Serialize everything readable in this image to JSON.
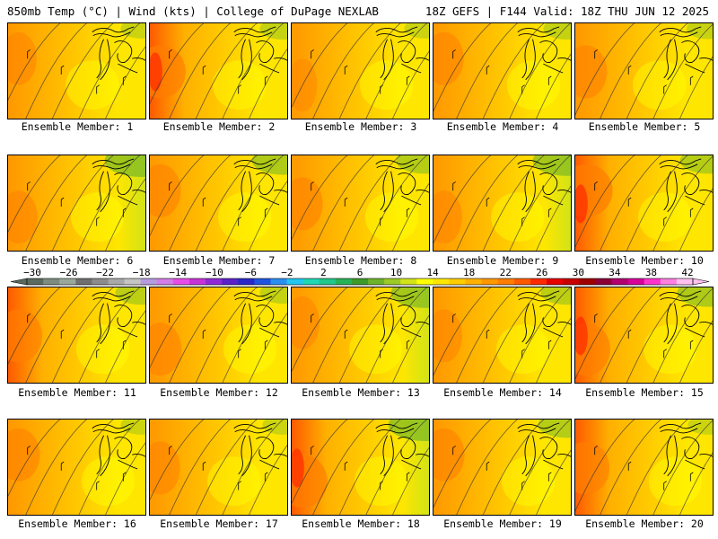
{
  "header": {
    "left": "850mb Temp (°C) | Wind (kts) | College of DuPage NEXLAB",
    "right": "18Z GEFS | F144 Valid: 18Z THU JUN 12 2025"
  },
  "members": [
    {
      "label": "Ensemble Member: 1",
      "red": 0.35,
      "green": 0.1
    },
    {
      "label": "Ensemble Member: 2",
      "red": 0.8,
      "green": 0.2
    },
    {
      "label": "Ensemble Member: 3",
      "red": 0.15,
      "green": 0.1
    },
    {
      "label": "Ensemble Member: 4",
      "red": 0.45,
      "green": 0.2
    },
    {
      "label": "Ensemble Member: 5",
      "red": 0.55,
      "green": 0.15
    },
    {
      "label": "Ensemble Member: 6",
      "red": 0.4,
      "green": 0.7
    },
    {
      "label": "Ensemble Member: 7",
      "red": 0.5,
      "green": 0.5
    },
    {
      "label": "Ensemble Member: 8",
      "red": 0.5,
      "green": 0.4
    },
    {
      "label": "Ensemble Member: 9",
      "red": 0.35,
      "green": 0.6
    },
    {
      "label": "Ensemble Member: 10",
      "red": 0.9,
      "green": 0.4
    },
    {
      "label": "Ensemble Member: 11",
      "red": 0.7,
      "green": 0.3
    },
    {
      "label": "Ensemble Member: 12",
      "red": 0.55,
      "green": 0.2
    },
    {
      "label": "Ensemble Member: 13",
      "red": 0.3,
      "green": 0.6
    },
    {
      "label": "Ensemble Member: 14",
      "red": 0.35,
      "green": 0.3
    },
    {
      "label": "Ensemble Member: 15",
      "red": 0.75,
      "green": 0.5
    },
    {
      "label": "Ensemble Member: 16",
      "red": 0.55,
      "green": 0.1
    },
    {
      "label": "Ensemble Member: 17",
      "red": 0.45,
      "green": 0.1
    },
    {
      "label": "Ensemble Member: 18",
      "red": 0.8,
      "green": 0.7
    },
    {
      "label": "Ensemble Member: 19",
      "red": 0.5,
      "green": 0.4
    },
    {
      "label": "Ensemble Member: 20",
      "red": 0.7,
      "green": 0.1
    }
  ],
  "colorbar": {
    "labels": [
      "-30",
      "-26",
      "-22",
      "-18",
      "-14",
      "-10",
      "-6",
      "-2",
      "2",
      "6",
      "10",
      "14",
      "18",
      "22",
      "26",
      "30",
      "34",
      "38",
      "42"
    ],
    "colors": [
      "#5b6a5e",
      "#7c8c7f",
      "#9aa89c",
      "#707070",
      "#8c8c8c",
      "#a8a8a8",
      "#c4c4c4",
      "#b79be0",
      "#d27de8",
      "#e84ce8",
      "#c833d8",
      "#8e2bd6",
      "#5b21c8",
      "#2a28c8",
      "#1f55e0",
      "#2b8fef",
      "#22c6ef",
      "#1fd7b5",
      "#22c78a",
      "#27b257",
      "#3c9b2a",
      "#6db32a",
      "#9dca26",
      "#d2e317",
      "#ffff00",
      "#ffe600",
      "#ffcc00",
      "#ffb000",
      "#ff9800",
      "#ff7e00",
      "#ff5a00",
      "#ff2a00",
      "#e60000",
      "#c80000",
      "#a00000",
      "#8c0038",
      "#b2006e",
      "#d60099",
      "#ff33cc",
      "#ff80e0",
      "#ffc0f0"
    ],
    "label_start_index": 0
  }
}
